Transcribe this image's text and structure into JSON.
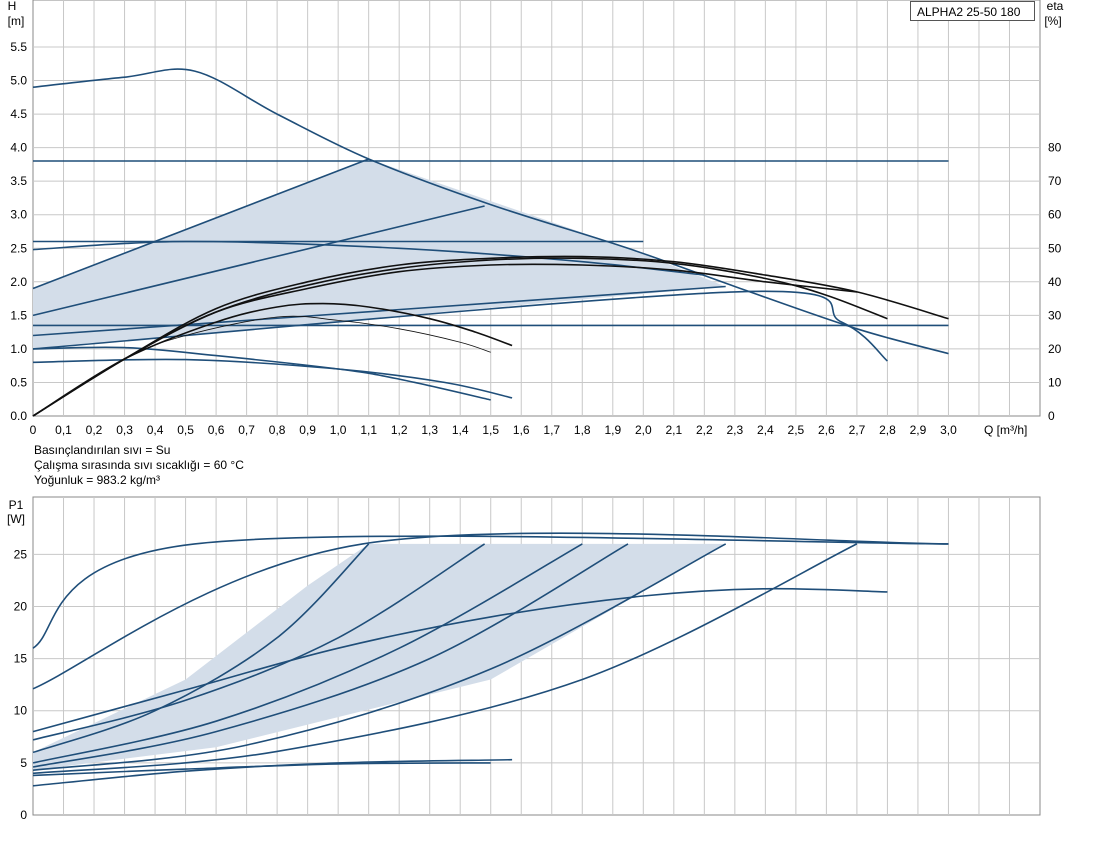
{
  "title": "ALPHA2 25-50 180",
  "notes": {
    "liquid": "Basınçlandırılan sıvı = Su",
    "temperature": "Çalışma sırasında sıvı sıcaklığı = 60 °C",
    "density": "Yoğunluk = 983.2 kg/m³"
  },
  "chart_data": [
    {
      "type": "line",
      "title": "",
      "xlabel": "Q [m³/h]",
      "ylabel_line1": "H",
      "ylabel_line2": "[m]",
      "y2label_line1": "eta",
      "y2label_line2": "[%]",
      "xlim": [
        0,
        3.3
      ],
      "ylim": [
        0,
        6.2
      ],
      "y2lim": [
        0,
        124
      ],
      "x_ticks": [
        "0",
        "0,1",
        "0,2",
        "0,3",
        "0,4",
        "0,5",
        "0,6",
        "0,7",
        "0,8",
        "0,9",
        "1,0",
        "1,1",
        "1,2",
        "1,3",
        "1,4",
        "1,5",
        "1,6",
        "1,7",
        "1,8",
        "1,9",
        "2,0",
        "2,1",
        "2,2",
        "2,3",
        "2,4",
        "2,5",
        "2,6",
        "2,7",
        "2,8",
        "2,9",
        "3,0"
      ],
      "y_ticks": [
        "0.0",
        "0.5",
        "1.0",
        "1.5",
        "2.0",
        "2.5",
        "3.0",
        "3.5",
        "4.0",
        "4.5",
        "5.0",
        "5.5"
      ],
      "y2_ticks": [
        "0",
        "10",
        "20",
        "30",
        "40",
        "50",
        "60",
        "70",
        "80"
      ],
      "grid": true,
      "shaded_region_H": [
        [
          0,
          1.9
        ],
        [
          1.1,
          3.83
        ],
        [
          1.95,
          2.5
        ],
        [
          2.27,
          1.93
        ],
        [
          0,
          1.0
        ]
      ],
      "head_series": [
        {
          "x": [
            0,
            0.3,
            0.53,
            0.8,
            1.1,
            1.5,
            1.95,
            2.3,
            2.7,
            3.0
          ],
          "y": [
            4.9,
            5.05,
            5.14,
            4.5,
            3.83,
            3.15,
            2.5,
            1.93,
            1.3,
            0.93
          ]
        },
        {
          "x": [
            0,
            3.0
          ],
          "y": [
            3.8,
            3.8
          ]
        },
        {
          "x": [
            0,
            2.0
          ],
          "y": [
            2.6,
            2.6
          ]
        },
        {
          "x": [
            0,
            3.0
          ],
          "y": [
            1.35,
            1.35
          ]
        },
        {
          "x": [
            0,
            1.1
          ],
          "y": [
            1.9,
            3.83
          ]
        },
        {
          "x": [
            0,
            1.48
          ],
          "y": [
            1.5,
            3.13
          ]
        },
        {
          "x": [
            0,
            2.27
          ],
          "y": [
            1.2,
            1.93
          ]
        },
        {
          "x": [
            0,
            2.3,
            2.65,
            2.8
          ],
          "y": [
            1.0,
            1.85,
            1.4,
            0.82
          ]
        },
        {
          "x": [
            0,
            0.5,
            1.2,
            1.8,
            2.2
          ],
          "y": [
            2.48,
            2.6,
            2.5,
            2.3,
            2.1
          ]
        },
        {
          "x": [
            0,
            0.5,
            1.0,
            1.35,
            1.57
          ],
          "y": [
            0.8,
            0.84,
            0.7,
            0.5,
            0.27
          ]
        },
        {
          "x": [
            0,
            0.3,
            0.6,
            1.0,
            1.2,
            1.5
          ],
          "y": [
            1.0,
            1.02,
            0.9,
            0.7,
            0.55,
            0.24
          ]
        }
      ],
      "eta_series": [
        {
          "x": [
            0,
            0.3,
            0.6,
            0.9,
            1.2,
            1.5,
            1.8,
            2.1,
            2.4,
            2.7,
            3.0
          ],
          "y": [
            0,
            17,
            32,
            40,
            45,
            47,
            47.5,
            46,
            42,
            37,
            29
          ]
        },
        {
          "x": [
            0,
            0.3,
            0.6,
            0.9,
            1.2,
            1.5,
            1.8,
            2.1,
            2.4,
            2.6,
            2.8
          ],
          "y": [
            0,
            17,
            31,
            39,
            44,
            46.5,
            47,
            45.5,
            41,
            36,
            29
          ]
        },
        {
          "x": [
            0,
            0.3,
            0.6,
            0.9,
            1.2,
            1.5,
            1.8,
            2.1,
            2.4,
            2.7
          ],
          "y": [
            0,
            17,
            31,
            38,
            43,
            45,
            45,
            43.5,
            40,
            37
          ]
        },
        {
          "x": [
            0,
            0.3,
            0.6,
            0.8,
            0.95,
            1.1,
            1.3,
            1.45,
            1.57
          ],
          "y": [
            0,
            17,
            28,
            32.5,
            33.5,
            32.5,
            29,
            25,
            21
          ]
        },
        {
          "x": [
            0,
            0.3,
            0.5,
            0.8,
            1.0,
            1.2,
            1.4,
            1.5
          ],
          "y": [
            0,
            17,
            24,
            29.5,
            28.5,
            26,
            22,
            19
          ]
        }
      ]
    },
    {
      "type": "line",
      "title": "",
      "ylabel_line1": "P1",
      "ylabel_line2": "[W]",
      "xlim": [
        0,
        3.3
      ],
      "ylim": [
        0,
        30.5
      ],
      "y_ticks": [
        "0",
        "5",
        "10",
        "15",
        "20",
        "25"
      ],
      "grid": true,
      "shaded_region_P": [
        [
          0,
          6
        ],
        [
          0.5,
          13
        ],
        [
          0.9,
          22
        ],
        [
          1.1,
          26
        ],
        [
          2.27,
          26
        ],
        [
          1.5,
          13
        ],
        [
          0.6,
          6.5
        ],
        [
          0,
          4.3
        ]
      ],
      "power_series": [
        {
          "x": [
            0,
            0.53,
            3.0
          ],
          "y": [
            16,
            26,
            26
          ]
        },
        {
          "x": [
            0,
            1.08,
            3.0
          ],
          "y": [
            12.1,
            26,
            26
          ]
        },
        {
          "x": [
            0,
            0.4,
            0.8,
            1.1
          ],
          "y": [
            6,
            10,
            17,
            26
          ]
        },
        {
          "x": [
            0,
            0.5,
            1.0,
            1.48
          ],
          "y": [
            7.2,
            11,
            17,
            26
          ]
        },
        {
          "x": [
            0,
            0.6,
            1.2,
            1.8
          ],
          "y": [
            5,
            9,
            16,
            26
          ]
        },
        {
          "x": [
            0,
            0.6,
            1.3,
            1.95
          ],
          "y": [
            4.6,
            8,
            15,
            26
          ]
        },
        {
          "x": [
            0,
            0.7,
            1.5,
            2.27
          ],
          "y": [
            4.3,
            6.7,
            14,
            26
          ]
        },
        {
          "x": [
            0,
            0.8,
            1.8,
            2.7
          ],
          "y": [
            4.0,
            6.1,
            13,
            26
          ]
        },
        {
          "x": [
            0,
            0.5,
            1.0,
            1.5,
            2.0,
            2.4,
            2.8
          ],
          "y": [
            8,
            12,
            16,
            19,
            21,
            21.7,
            21.4
          ]
        },
        {
          "x": [
            0,
            0.5,
            1.0,
            1.57
          ],
          "y": [
            2.8,
            4.2,
            5,
            5.3
          ]
        },
        {
          "x": [
            0,
            0.5,
            1.0,
            1.5
          ],
          "y": [
            3.8,
            4.4,
            4.9,
            5.0
          ]
        }
      ]
    }
  ]
}
